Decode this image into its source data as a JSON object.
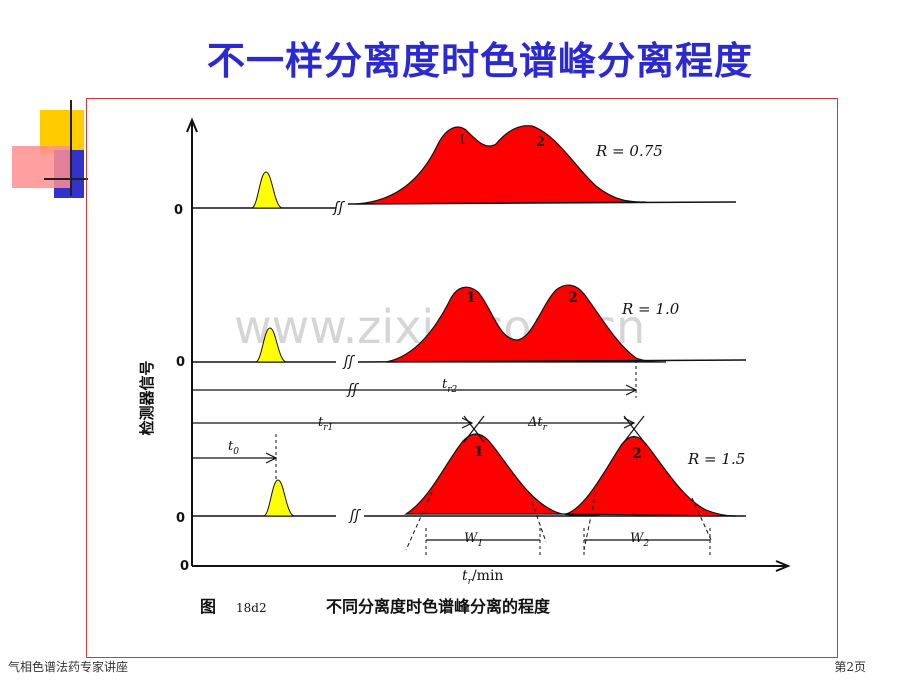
{
  "slide": {
    "title": "不一样分离度时色谱峰分离程度",
    "footer_left": "气相色谱法药专家讲座",
    "footer_right": "第2页",
    "watermark": "www.zixin.com.cn"
  },
  "diagram": {
    "y_axis_label": "检测器信号",
    "zero_label": "0",
    "x_axis_label_main": "t",
    "x_axis_label_sub": "r",
    "x_axis_label_unit": "/min",
    "caption_fig": "图",
    "caption_num": "18d2",
    "caption_text": "不同分离度时色谱峰分离的程度",
    "traces": [
      {
        "resolution_label": "R = 0.75",
        "peak1_label": "1",
        "peak2_label": "2"
      },
      {
        "resolution_label": "R = 1.0",
        "peak1_label": "1",
        "peak2_label": "2"
      },
      {
        "resolution_label": "R = 1.5",
        "peak1_label": "1",
        "peak2_label": "2"
      }
    ],
    "annotations": {
      "t0": "t",
      "t0_sub": "0",
      "tr1": "t",
      "tr1_sub": "r1",
      "tr2": "t",
      "tr2_sub": "r2",
      "delta_tr": "Δt",
      "delta_tr_sub": "r",
      "w1": "W",
      "w1_sub": "1",
      "w2": "W",
      "w2_sub": "2"
    },
    "colors": {
      "peak_fill": "#ff0000",
      "dead_time_peak_fill": "#ffff00",
      "title_color": "#2a2ad0"
    }
  }
}
